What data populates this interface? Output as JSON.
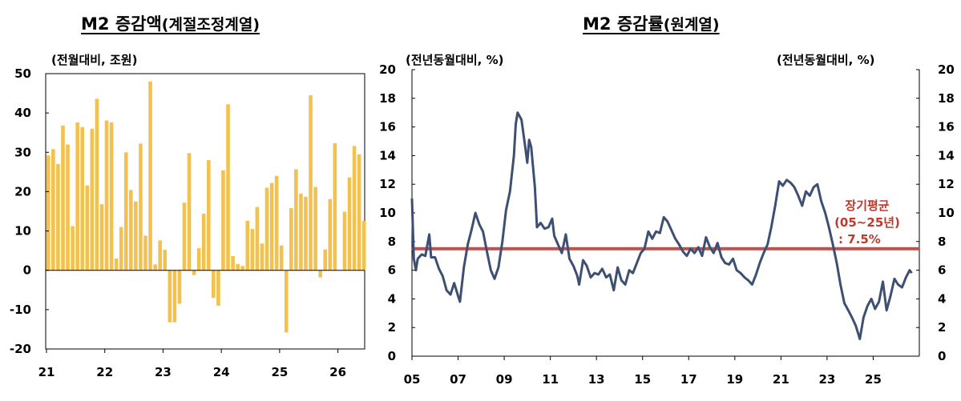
{
  "left_panel": {
    "title_main": "M2 증감액",
    "title_sub": "(계절조정계열)",
    "unit": "(전월대비, 조원)"
  },
  "right_panel": {
    "title_main": "M2 증감률",
    "title_sub": "(원계열)",
    "unit_left": "(전년동월대비, %)",
    "unit_right": "(전년동월대비, %)",
    "annotation_line1": "장기평균",
    "annotation_line2": "(05~25년)",
    "annotation_line3": ": 7.5%"
  },
  "colors": {
    "bar": "#f2c14e",
    "line": "#3d4f73",
    "average": "#c0504d"
  },
  "chart_data": [
    {
      "type": "bar",
      "x_tick_labels": [
        "21",
        "22",
        "23",
        "24",
        "25",
        "26"
      ],
      "y_ticks": [
        50,
        40,
        30,
        20,
        10,
        0,
        -10,
        -20
      ],
      "ylim": [
        -20,
        50
      ],
      "values": [
        29.2,
        30.8,
        27.0,
        36.8,
        32.0,
        11.2,
        37.6,
        36.4,
        21.6,
        36.0,
        43.6,
        16.8,
        38.1,
        37.6,
        3.0,
        11.0,
        30.0,
        20.4,
        17.5,
        32.2,
        8.8,
        48.0,
        1.5,
        7.6,
        5.2,
        -13.2,
        -13.2,
        -8.5,
        17.2,
        29.8,
        -1.2,
        5.6,
        14.4,
        28.0,
        -7.0,
        -9.0,
        25.4,
        42.2,
        3.6,
        1.6,
        1.1,
        12.6,
        10.5,
        16.1,
        6.8,
        21.0,
        22.2,
        24.0,
        6.3,
        -15.8,
        15.8,
        25.7,
        19.5,
        18.7,
        44.5,
        21.2,
        -1.8,
        5.3,
        18.1,
        32.3,
        0.0,
        14.9,
        23.6,
        31.6,
        29.5,
        12.6
      ]
    },
    {
      "type": "line",
      "x_tick_labels": [
        "05",
        "07",
        "09",
        "11",
        "13",
        "15",
        "17",
        "19",
        "21",
        "23",
        "25"
      ],
      "y_ticks": [
        0,
        2,
        4,
        6,
        8,
        10,
        12,
        14,
        16,
        18,
        20
      ],
      "ylim": [
        0,
        20
      ],
      "average_line": 7.5,
      "points": [
        [
          2005.0,
          11.0
        ],
        [
          2005.08,
          6.8
        ],
        [
          2005.17,
          6.0
        ],
        [
          2005.25,
          6.8
        ],
        [
          2005.42,
          7.1
        ],
        [
          2005.58,
          7.0
        ],
        [
          2005.75,
          8.5
        ],
        [
          2005.83,
          6.9
        ],
        [
          2006.0,
          6.9
        ],
        [
          2006.17,
          6.1
        ],
        [
          2006.33,
          5.6
        ],
        [
          2006.5,
          4.6
        ],
        [
          2006.67,
          4.3
        ],
        [
          2006.83,
          5.1
        ],
        [
          2007.0,
          4.2
        ],
        [
          2007.08,
          3.8
        ],
        [
          2007.25,
          6.2
        ],
        [
          2007.42,
          7.8
        ],
        [
          2007.58,
          8.8
        ],
        [
          2007.75,
          10.0
        ],
        [
          2007.92,
          9.2
        ],
        [
          2008.08,
          8.7
        ],
        [
          2008.25,
          7.3
        ],
        [
          2008.42,
          6.0
        ],
        [
          2008.58,
          5.4
        ],
        [
          2008.75,
          6.2
        ],
        [
          2008.92,
          8.0
        ],
        [
          2009.08,
          10.2
        ],
        [
          2009.25,
          11.5
        ],
        [
          2009.42,
          14.0
        ],
        [
          2009.5,
          16.2
        ],
        [
          2009.58,
          17.0
        ],
        [
          2009.75,
          16.5
        ],
        [
          2009.92,
          14.5
        ],
        [
          2010.0,
          13.5
        ],
        [
          2010.08,
          15.1
        ],
        [
          2010.17,
          14.6
        ],
        [
          2010.33,
          11.8
        ],
        [
          2010.42,
          9.0
        ],
        [
          2010.58,
          9.3
        ],
        [
          2010.75,
          8.9
        ],
        [
          2010.92,
          9.0
        ],
        [
          2011.08,
          9.6
        ],
        [
          2011.17,
          8.4
        ],
        [
          2011.33,
          7.8
        ],
        [
          2011.5,
          7.2
        ],
        [
          2011.67,
          8.5
        ],
        [
          2011.83,
          6.8
        ],
        [
          2012.0,
          6.3
        ],
        [
          2012.17,
          5.6
        ],
        [
          2012.25,
          5.0
        ],
        [
          2012.42,
          6.7
        ],
        [
          2012.58,
          6.3
        ],
        [
          2012.75,
          5.5
        ],
        [
          2012.92,
          5.8
        ],
        [
          2013.08,
          5.7
        ],
        [
          2013.25,
          6.1
        ],
        [
          2013.42,
          5.5
        ],
        [
          2013.58,
          5.7
        ],
        [
          2013.75,
          4.6
        ],
        [
          2013.92,
          6.2
        ],
        [
          2014.08,
          5.3
        ],
        [
          2014.25,
          5.0
        ],
        [
          2014.42,
          6.0
        ],
        [
          2014.58,
          5.8
        ],
        [
          2014.75,
          6.5
        ],
        [
          2014.92,
          7.2
        ],
        [
          2015.08,
          7.5
        ],
        [
          2015.25,
          8.7
        ],
        [
          2015.42,
          8.2
        ],
        [
          2015.58,
          8.7
        ],
        [
          2015.75,
          8.6
        ],
        [
          2015.92,
          9.7
        ],
        [
          2016.08,
          9.4
        ],
        [
          2016.25,
          8.8
        ],
        [
          2016.42,
          8.2
        ],
        [
          2016.58,
          7.8
        ],
        [
          2016.75,
          7.3
        ],
        [
          2016.92,
          7.0
        ],
        [
          2017.08,
          7.5
        ],
        [
          2017.25,
          7.2
        ],
        [
          2017.42,
          7.6
        ],
        [
          2017.58,
          7.0
        ],
        [
          2017.75,
          8.3
        ],
        [
          2017.92,
          7.6
        ],
        [
          2018.08,
          7.2
        ],
        [
          2018.25,
          7.9
        ],
        [
          2018.42,
          6.9
        ],
        [
          2018.58,
          6.5
        ],
        [
          2018.75,
          6.4
        ],
        [
          2018.92,
          6.8
        ],
        [
          2019.08,
          6.0
        ],
        [
          2019.25,
          5.8
        ],
        [
          2019.42,
          5.5
        ],
        [
          2019.58,
          5.3
        ],
        [
          2019.75,
          5.0
        ],
        [
          2019.92,
          5.7
        ],
        [
          2020.08,
          6.5
        ],
        [
          2020.25,
          7.2
        ],
        [
          2020.42,
          7.8
        ],
        [
          2020.58,
          9.0
        ],
        [
          2020.75,
          10.5
        ],
        [
          2020.92,
          12.2
        ],
        [
          2021.08,
          11.9
        ],
        [
          2021.25,
          12.3
        ],
        [
          2021.42,
          12.1
        ],
        [
          2021.58,
          11.8
        ],
        [
          2021.75,
          11.2
        ],
        [
          2021.92,
          10.5
        ],
        [
          2022.08,
          11.5
        ],
        [
          2022.25,
          11.2
        ],
        [
          2022.42,
          11.8
        ],
        [
          2022.58,
          12.0
        ],
        [
          2022.75,
          10.8
        ],
        [
          2022.92,
          10.0
        ],
        [
          2023.08,
          9.0
        ],
        [
          2023.25,
          7.8
        ],
        [
          2023.42,
          6.5
        ],
        [
          2023.58,
          5.0
        ],
        [
          2023.75,
          3.7
        ],
        [
          2023.92,
          3.2
        ],
        [
          2024.08,
          2.7
        ],
        [
          2024.25,
          2.1
        ],
        [
          2024.42,
          1.2
        ],
        [
          2024.58,
          2.7
        ],
        [
          2024.75,
          3.5
        ],
        [
          2024.92,
          4.0
        ],
        [
          2025.08,
          3.3
        ],
        [
          2025.25,
          3.8
        ],
        [
          2025.42,
          5.2
        ],
        [
          2025.58,
          3.2
        ],
        [
          2025.75,
          4.2
        ],
        [
          2025.92,
          5.4
        ],
        [
          2026.08,
          5.0
        ],
        [
          2026.25,
          4.8
        ],
        [
          2026.42,
          5.5
        ],
        [
          2026.58,
          6.0
        ],
        [
          2026.67,
          5.8
        ]
      ]
    }
  ]
}
